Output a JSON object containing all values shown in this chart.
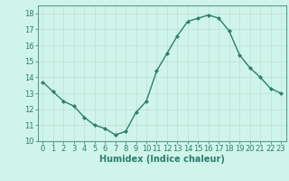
{
  "x": [
    0,
    1,
    2,
    3,
    4,
    5,
    6,
    7,
    8,
    9,
    10,
    11,
    12,
    13,
    14,
    15,
    16,
    17,
    18,
    19,
    20,
    21,
    22,
    23
  ],
  "y": [
    13.7,
    13.1,
    12.5,
    12.2,
    11.5,
    11.0,
    10.8,
    10.4,
    10.6,
    11.8,
    12.5,
    14.4,
    15.5,
    16.6,
    17.5,
    17.7,
    17.9,
    17.7,
    16.9,
    15.4,
    14.6,
    14.0,
    13.3,
    13.0
  ],
  "line_color": "#2e7d6e",
  "marker": "D",
  "marker_size": 2.0,
  "bg_color": "#cff5ea",
  "grid_color": "#c0ddd4",
  "xlabel": "Humidex (Indice chaleur)",
  "xlim": [
    -0.5,
    23.5
  ],
  "ylim": [
    10,
    18.5
  ],
  "yticks": [
    10,
    11,
    12,
    13,
    14,
    15,
    16,
    17,
    18
  ],
  "xticks": [
    0,
    1,
    2,
    3,
    4,
    5,
    6,
    7,
    8,
    9,
    10,
    11,
    12,
    13,
    14,
    15,
    16,
    17,
    18,
    19,
    20,
    21,
    22,
    23
  ],
  "tick_fontsize": 6,
  "xlabel_fontsize": 7,
  "label_color": "#2e7d6e",
  "spine_color": "#5a9a8a",
  "linewidth": 1.0
}
